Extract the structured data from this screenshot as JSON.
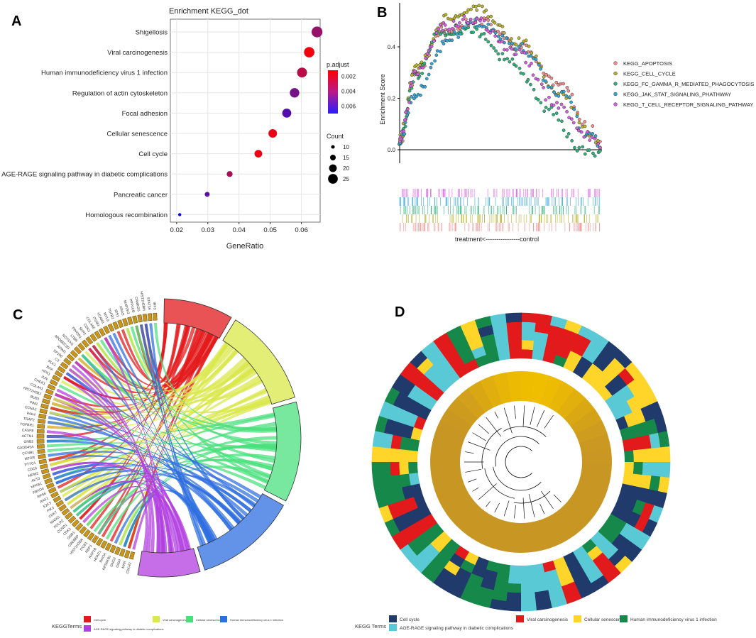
{
  "panel_letters": [
    "A",
    "B",
    "C",
    "D"
  ],
  "chart_data": [
    {
      "type": "scatter",
      "panel": "A",
      "title": "Enrichment KEGG_dot",
      "xlabel": "GeneRatio",
      "ylabel": "",
      "xlim": [
        0.018,
        0.066
      ],
      "xticks": [
        0.02,
        0.03,
        0.04,
        0.05,
        0.06
      ],
      "xtick_labels": [
        "0.02",
        "0.03",
        "0.04",
        "0.05",
        "0.06"
      ],
      "grid": true,
      "terms": [
        {
          "name": "Shigellosis",
          "gene_ratio": 0.065,
          "count": 25,
          "p_adjust": 0.0036
        },
        {
          "name": "Viral carcinogenesis",
          "gene_ratio": 0.0625,
          "count": 24,
          "p_adjust": 0.0015
        },
        {
          "name": "Human immunodeficiency virus 1 infection",
          "gene_ratio": 0.0602,
          "count": 23,
          "p_adjust": 0.0028
        },
        {
          "name": "Regulation of actin cytoskeleton",
          "gene_ratio": 0.0578,
          "count": 22,
          "p_adjust": 0.0043
        },
        {
          "name": "Focal adhesion",
          "gene_ratio": 0.0553,
          "count": 21,
          "p_adjust": 0.0051
        },
        {
          "name": "Cellular senescence",
          "gene_ratio": 0.0508,
          "count": 20,
          "p_adjust": 0.0017
        },
        {
          "name": "Cell cycle",
          "gene_ratio": 0.0462,
          "count": 18,
          "p_adjust": 0.0016
        },
        {
          "name": "AGE-RAGE signaling pathway in diabetic complications",
          "gene_ratio": 0.037,
          "count": 14,
          "p_adjust": 0.0032
        },
        {
          "name": "Pancreatic cancer",
          "gene_ratio": 0.0298,
          "count": 12,
          "p_adjust": 0.0049
        },
        {
          "name": "Homologous recombination",
          "gene_ratio": 0.021,
          "count": 8,
          "p_adjust": 0.0068
        }
      ],
      "color_legend": {
        "title": "p.adjust",
        "ticks": [
          "0.002",
          "0.004",
          "0.006"
        ],
        "range": [
          0.0012,
          0.007
        ],
        "colors": [
          "#ff0000",
          "#0000ff"
        ]
      },
      "size_legend": {
        "title": "Count",
        "values": [
          10,
          15,
          20,
          25
        ],
        "labels": [
          "10",
          "15",
          "20",
          "25"
        ]
      }
    },
    {
      "type": "line",
      "panel": "B",
      "ylabel": "Enrichment Score",
      "ylim": [
        -0.05,
        0.56
      ],
      "yticks": [
        0.0,
        0.2,
        0.4
      ],
      "ytick_labels": [
        "0.0",
        "0.2",
        "0.4"
      ],
      "x_note": "treatment<----------------control",
      "series": [
        {
          "name": "KEGG_APOPTOSIS",
          "color": "#f08c8c",
          "keypoints": [
            [
              0,
              0.03
            ],
            [
              8,
              0.3
            ],
            [
              22,
              0.47
            ],
            [
              40,
              0.5
            ],
            [
              60,
              0.4
            ],
            [
              80,
              0.25
            ],
            [
              95,
              0.08
            ],
            [
              100,
              0.03
            ]
          ]
        },
        {
          "name": "KEGG_CELL_CYCLE",
          "color": "#b8b22c",
          "keypoints": [
            [
              0,
              0.05
            ],
            [
              8,
              0.32
            ],
            [
              24,
              0.52
            ],
            [
              38,
              0.55
            ],
            [
              60,
              0.42
            ],
            [
              80,
              0.22
            ],
            [
              95,
              0.06
            ],
            [
              100,
              0.02
            ]
          ]
        },
        {
          "name": "KEGG_FC_GAMMA_R_MEDIATED_PHAGOCYTOSIS",
          "color": "#2db27a",
          "keypoints": [
            [
              0,
              0.04
            ],
            [
              8,
              0.28
            ],
            [
              20,
              0.46
            ],
            [
              35,
              0.47
            ],
            [
              55,
              0.35
            ],
            [
              75,
              0.15
            ],
            [
              90,
              0.0
            ],
            [
              100,
              -0.01
            ]
          ]
        },
        {
          "name": "KEGG_JAK_STAT_SIGNALING_PHATHWAY",
          "color": "#35a6d6",
          "keypoints": [
            [
              0,
              0.03
            ],
            [
              8,
              0.22
            ],
            [
              25,
              0.44
            ],
            [
              38,
              0.49
            ],
            [
              60,
              0.4
            ],
            [
              80,
              0.22
            ],
            [
              95,
              0.05
            ],
            [
              100,
              0.02
            ]
          ]
        },
        {
          "name": "KEGG_T_CELL_RECEPTOR_SIGNALING_PATHWAY",
          "color": "#d45ee0",
          "keypoints": [
            [
              0,
              0.04
            ],
            [
              8,
              0.3
            ],
            [
              22,
              0.48
            ],
            [
              36,
              0.51
            ],
            [
              58,
              0.38
            ],
            [
              78,
              0.18
            ],
            [
              95,
              0.05
            ],
            [
              100,
              0.0
            ]
          ]
        }
      ]
    },
    {
      "type": "chord",
      "panel": "C",
      "genes": [
        "CDC42",
        "MAX",
        "GNAI",
        "GNG2",
        "RPS6KB1",
        "RHOA",
        "HDAC1",
        "RAP1B",
        "RBPJ",
        "ITGB1",
        "HIST1H2BK",
        "CREBBP",
        "GNB1",
        "CDK1",
        "CCND1",
        "POLR2",
        "MAD2L",
        "CDK7",
        "PIK3",
        "E2F3",
        "RAF1",
        "RPS6",
        "FBXO4",
        "NFKB1",
        "AKT3",
        "MDM2",
        "CDC6",
        "PTTG1",
        "MTOR",
        "CCNB1",
        "GADD45A",
        "GNB2",
        "ACTN1",
        "CASP8",
        "TGFBR1",
        "TRAF2",
        "PAK4",
        "CCNA2",
        "PIM1",
        "BUB1",
        "HIST1H2BJ",
        "COL4A1",
        "CHEK1",
        "JUN",
        "HPK1",
        "BAX",
        "PLK1",
        "C3",
        "SP100",
        "APIM1",
        "APOBEC3G",
        "NOTCH1",
        "LTBR",
        "PPP2R1",
        "SKP2",
        "CDK2",
        "COL4A6",
        "ITGB3",
        "VCAM1",
        "MYL9",
        "TGFB2",
        "IRS1",
        "KRAS",
        "MAP2K3",
        "PPP1CB",
        "CAMK2G",
        "HIST1H2BH",
        "STAT3A",
        "IRF3"
      ],
      "terms": [
        "Cell cycle",
        "Viral carcinogenesis",
        "Cellular senescence",
        "Human immunodeficiency virus 1 infection",
        "AGE-RAGE signaling pathway in diabetic complications"
      ],
      "term_colors": [
        "#e31a1c",
        "#d9e84a",
        "#49e07c",
        "#2f6fe0",
        "#b13de0"
      ],
      "legend_title": "KEGGTerms"
    },
    {
      "type": "heatmap",
      "panel": "D",
      "layout": "circular",
      "legend_title": "KEGG Terms",
      "categories": [
        "Cell cycle",
        "Viral carcinogenesis",
        "Cellular senescence",
        "Human immunodeficiency virus 1 infection",
        "AGE-RAGE signaling pathway in diabetic complications"
      ],
      "colors": [
        "#1f3a6b",
        "#e31a1c",
        "#ffd52a",
        "#16894a",
        "#5ac9d6"
      ]
    }
  ]
}
